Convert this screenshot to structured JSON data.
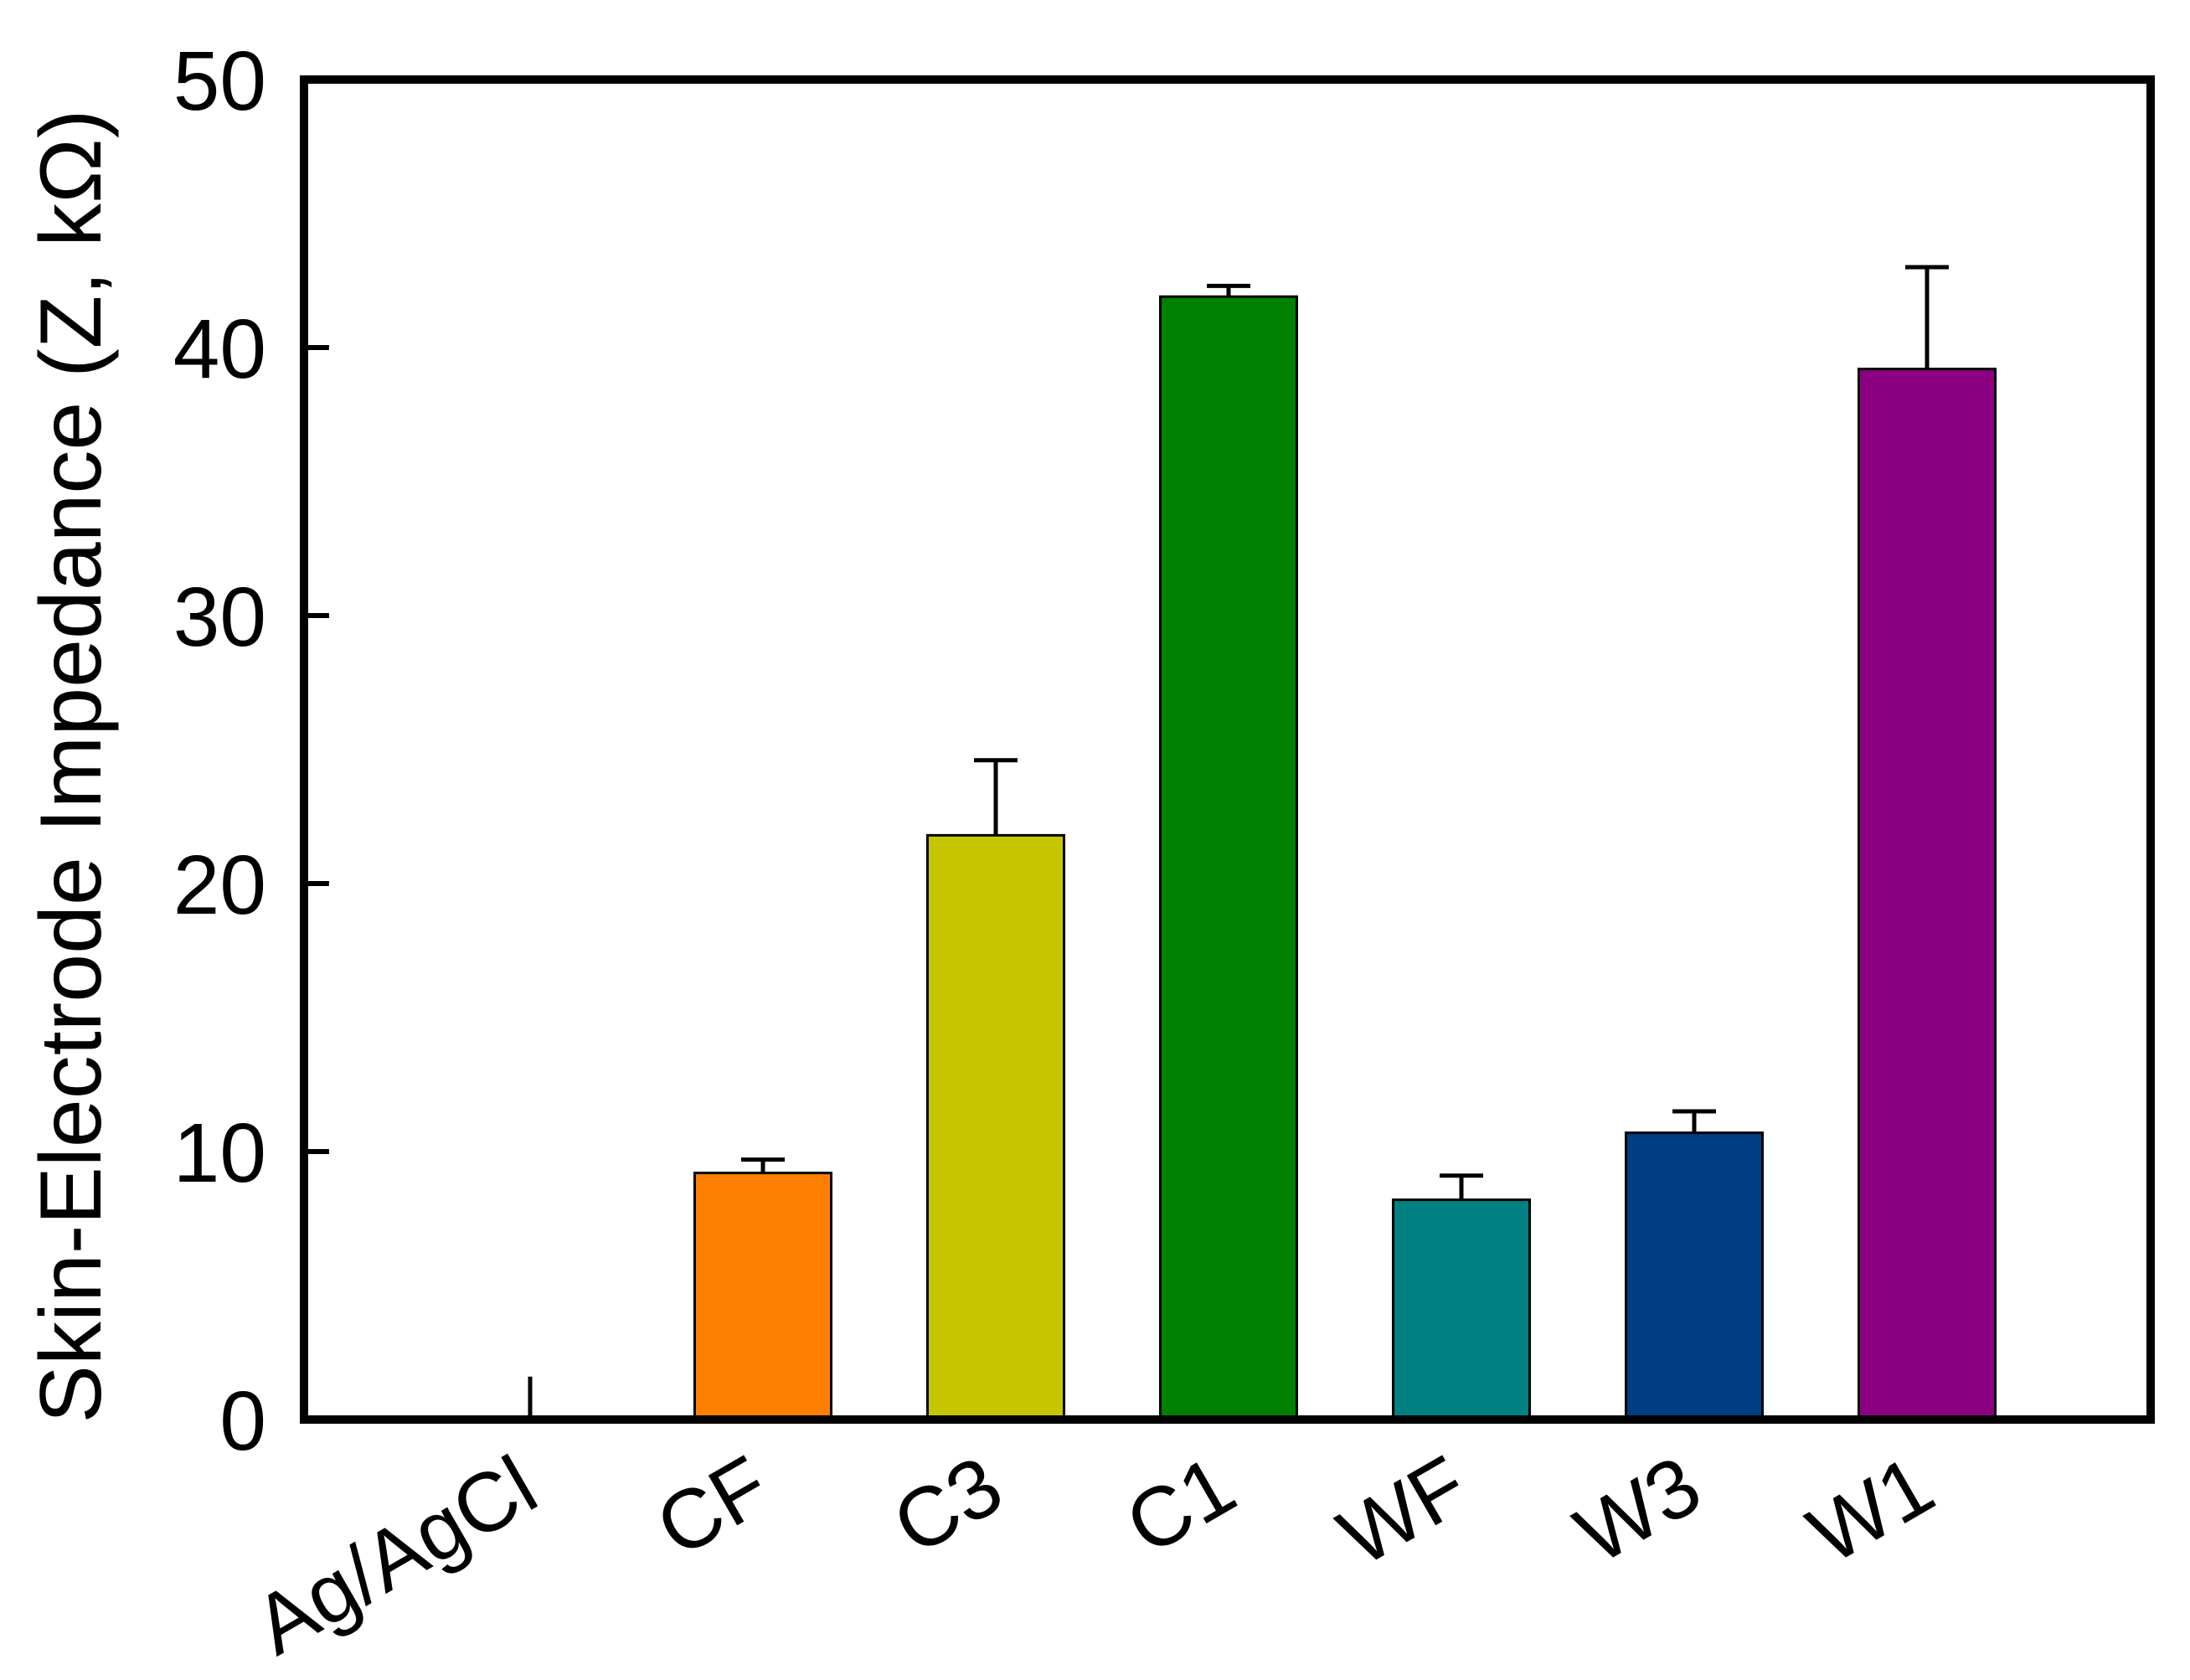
{
  "chart_data": {
    "type": "bar",
    "title": "",
    "xlabel": "",
    "ylabel": "Skin-Electrode Impedance (Z, kΩ)",
    "ylim": [
      0,
      50
    ],
    "yticks": [
      "0",
      "10",
      "20",
      "30",
      "40",
      "50"
    ],
    "grid": false,
    "categories": [
      "Ag/AgCl",
      "CF",
      "C3",
      "C1",
      "WF",
      "W3",
      "W1"
    ],
    "values": [
      0,
      9.2,
      21.8,
      41.9,
      8.2,
      10.7,
      39.2
    ],
    "errors": [
      1.6,
      0.5,
      2.8,
      0.4,
      0.9,
      0.8,
      3.8
    ],
    "colors": [
      "#000000",
      "#FF8000",
      "#C6C600",
      "#008000",
      "#008080",
      "#003D82",
      "#8B0080"
    ]
  }
}
